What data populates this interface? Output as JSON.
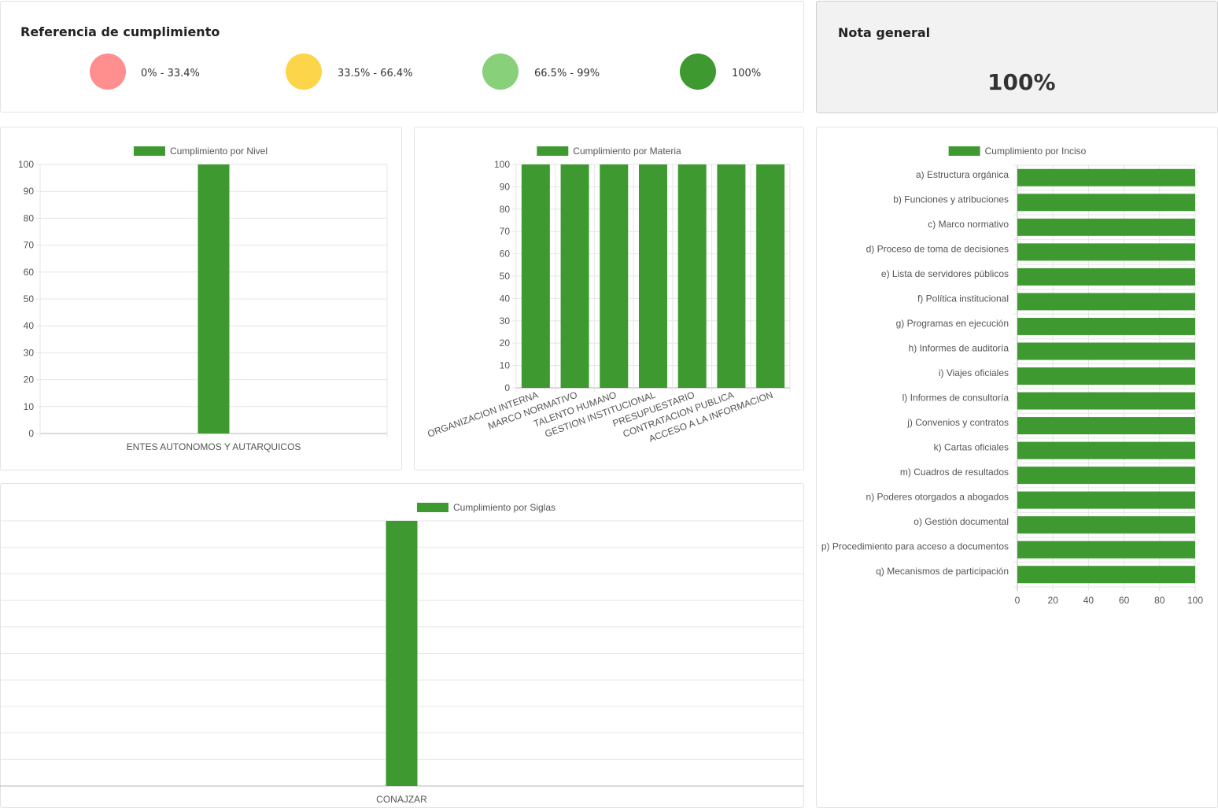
{
  "reference": {
    "title": "Referencia de cumplimiento",
    "items": [
      {
        "label": "0% - 33.4%",
        "color": "#ff8f8f"
      },
      {
        "label": "33.5% - 66.4%",
        "color": "#fdd54a"
      },
      {
        "label": "66.5% - 99%",
        "color": "#88d07a"
      },
      {
        "label": "100%",
        "color": "#3e9a30"
      }
    ]
  },
  "nota": {
    "title": "Nota general",
    "value": "100%"
  },
  "colors": {
    "bar": "#3e9a30",
    "grid": "#e6e6e6",
    "axis": "#b5b5b5"
  },
  "chart_data": [
    {
      "id": "nivel",
      "type": "bar",
      "legend": "Cumplimiento por Nivel",
      "categories": [
        "ENTES AUTONOMOS Y AUTARQUICOS"
      ],
      "values": [
        100
      ],
      "ylim": [
        0,
        100
      ],
      "yticks": [
        0,
        10,
        20,
        30,
        40,
        50,
        60,
        70,
        80,
        90,
        100
      ],
      "grid": true,
      "legend_position": "top"
    },
    {
      "id": "materia",
      "type": "bar",
      "legend": "Cumplimiento por Materia",
      "categories": [
        "ORGANIZACION INTERNA",
        "MARCO NORMATIVO",
        "TALENTO HUMANO",
        "GESTION INSTITUCIONAL",
        "PRESUPUESTARIO",
        "CONTRATACION PUBLICA",
        "ACCESO A LA INFORMACION"
      ],
      "values": [
        100,
        100,
        100,
        100,
        100,
        100,
        100
      ],
      "ylim": [
        0,
        100
      ],
      "yticks": [
        0,
        10,
        20,
        30,
        40,
        50,
        60,
        70,
        80,
        90,
        100
      ],
      "grid": true,
      "legend_position": "top"
    },
    {
      "id": "inciso",
      "type": "bar",
      "orientation": "horizontal",
      "legend": "Cumplimiento por Inciso",
      "categories": [
        "a) Estructura orgánica",
        "b) Funciones y atribuciones",
        "c) Marco normativo",
        "d) Proceso de toma de decisiones",
        "e) Lista de servidores públicos",
        "f) Política institucional",
        "g) Programas en ejecución",
        "h) Informes de auditoría",
        "i) Viajes oficiales",
        "l) Informes de consultoría",
        "j) Convenios y contratos",
        "k) Cartas oficiales",
        "m)  Cuadros de resultados",
        "n)  Poderes otorgados a abogados",
        "o) Gestión documental",
        "p) Procedimiento para acceso a documentos",
        "q) Mecanismos de participación"
      ],
      "values": [
        100,
        100,
        100,
        100,
        100,
        100,
        100,
        100,
        100,
        100,
        100,
        100,
        100,
        100,
        100,
        100,
        100
      ],
      "xlim": [
        0,
        100
      ],
      "xticks": [
        0,
        20,
        40,
        60,
        80,
        100
      ],
      "grid": true,
      "legend_position": "top"
    },
    {
      "id": "siglas",
      "type": "bar",
      "legend": "Cumplimiento por Siglas",
      "categories": [
        "CONAJZAR"
      ],
      "values": [
        100
      ],
      "ylim": [
        0,
        100
      ],
      "grid": true,
      "legend_position": "top"
    }
  ]
}
